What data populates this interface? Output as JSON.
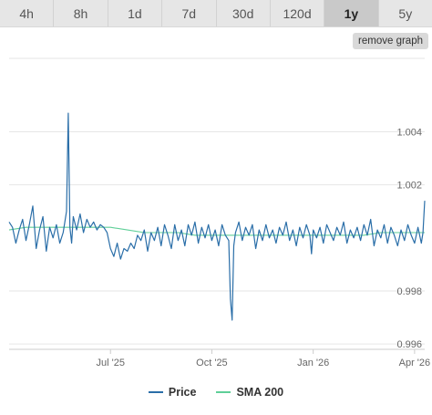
{
  "tabs": [
    {
      "label": "4h",
      "active": false
    },
    {
      "label": "8h",
      "active": false
    },
    {
      "label": "1d",
      "active": false
    },
    {
      "label": "7d",
      "active": false
    },
    {
      "label": "30d",
      "active": false
    },
    {
      "label": "120d",
      "active": false
    },
    {
      "label": "1y",
      "active": true
    },
    {
      "label": "5y",
      "active": false
    }
  ],
  "remove_graph_label": "remove graph",
  "colors": {
    "price": "#2a6ea8",
    "sma": "#5fcf98",
    "grid": "#e6e6e6",
    "tick_text": "#666666"
  },
  "chart_data": {
    "type": "line",
    "title": "",
    "xlabel": "",
    "ylabel": "",
    "ylim": [
      0.9958,
      1.0068
    ],
    "xlim": [
      0,
      12.3
    ],
    "grid": true,
    "legend_position": "bottom-center",
    "y_ticks": [
      {
        "value": 0.996,
        "label": "0.996"
      },
      {
        "value": 0.998,
        "label": "0.998"
      },
      {
        "value": 1.002,
        "label": "1.002"
      },
      {
        "value": 1.004,
        "label": "1.004"
      }
    ],
    "x_ticks": [
      {
        "value": 3.0,
        "label": "Jul '25"
      },
      {
        "value": 6.0,
        "label": "Oct '25"
      },
      {
        "value": 9.0,
        "label": "Jan '26"
      },
      {
        "value": 12.0,
        "label": "Apr '26"
      }
    ],
    "series": [
      {
        "name": "Price",
        "color": "#2a6ea8",
        "x": [
          0.0,
          0.1,
          0.2,
          0.3,
          0.4,
          0.5,
          0.6,
          0.7,
          0.8,
          0.9,
          1.0,
          1.1,
          1.2,
          1.3,
          1.4,
          1.5,
          1.6,
          1.7,
          1.75,
          1.8,
          1.85,
          1.9,
          2.0,
          2.1,
          2.2,
          2.3,
          2.4,
          2.5,
          2.6,
          2.7,
          2.8,
          2.9,
          3.0,
          3.1,
          3.2,
          3.3,
          3.4,
          3.5,
          3.6,
          3.7,
          3.8,
          3.9,
          4.0,
          4.1,
          4.2,
          4.3,
          4.4,
          4.5,
          4.6,
          4.7,
          4.8,
          4.9,
          5.0,
          5.1,
          5.2,
          5.3,
          5.4,
          5.5,
          5.6,
          5.7,
          5.8,
          5.9,
          6.0,
          6.1,
          6.2,
          6.3,
          6.4,
          6.5,
          6.55,
          6.6,
          6.65,
          6.7,
          6.8,
          6.9,
          7.0,
          7.1,
          7.2,
          7.3,
          7.4,
          7.5,
          7.6,
          7.7,
          7.8,
          7.9,
          8.0,
          8.1,
          8.2,
          8.3,
          8.4,
          8.5,
          8.6,
          8.7,
          8.8,
          8.9,
          8.95,
          9.0,
          9.1,
          9.2,
          9.3,
          9.4,
          9.5,
          9.6,
          9.7,
          9.8,
          9.9,
          10.0,
          10.1,
          10.2,
          10.3,
          10.4,
          10.5,
          10.6,
          10.7,
          10.8,
          10.9,
          11.0,
          11.1,
          11.2,
          11.3,
          11.4,
          11.5,
          11.6,
          11.7,
          11.8,
          11.9,
          12.0,
          12.1,
          12.2,
          12.25,
          12.3
        ],
        "y": [
          1.0006,
          1.0004,
          0.9998,
          1.0003,
          1.0007,
          0.9999,
          1.0005,
          1.0012,
          0.9996,
          1.0003,
          1.0008,
          0.9995,
          1.0004,
          1.0,
          1.0005,
          0.9998,
          1.0002,
          1.001,
          1.0047,
          1.0004,
          0.9998,
          1.0008,
          1.0003,
          1.0009,
          1.0002,
          1.0007,
          1.0004,
          1.0006,
          1.0003,
          1.0005,
          1.0004,
          1.0002,
          0.9996,
          0.9993,
          0.9998,
          0.9992,
          0.9996,
          0.9995,
          0.9998,
          0.9996,
          1.0001,
          0.9999,
          1.0003,
          0.9995,
          1.0002,
          0.9999,
          1.0004,
          0.9997,
          1.0005,
          1.0001,
          0.9996,
          1.0005,
          0.9999,
          1.0003,
          0.9997,
          1.0005,
          1.0001,
          1.0006,
          0.9998,
          1.0004,
          1.0,
          1.0005,
          0.9999,
          1.0003,
          0.9997,
          1.0005,
          1.0001,
          0.9999,
          0.9977,
          0.9969,
          0.9997,
          1.0002,
          1.0006,
          0.9999,
          1.0004,
          1.0001,
          1.0005,
          0.9996,
          1.0003,
          0.9999,
          1.0005,
          1.0,
          1.0003,
          0.9998,
          1.0004,
          1.0001,
          1.0006,
          0.9999,
          1.0003,
          0.9997,
          1.0004,
          1.0,
          1.0005,
          1.0001,
          0.9994,
          1.0003,
          1.0,
          1.0004,
          0.9998,
          1.0005,
          1.0002,
          0.9999,
          1.0004,
          1.0001,
          1.0006,
          0.9998,
          1.0003,
          1.0,
          1.0004,
          0.9999,
          1.0005,
          1.0001,
          1.0007,
          0.9997,
          1.0003,
          1.0,
          1.0005,
          0.9998,
          1.0004,
          1.0001,
          0.9997,
          1.0003,
          0.9999,
          1.0005,
          1.0001,
          0.9998,
          1.0004,
          0.9998,
          1.0002,
          1.0014
        ]
      },
      {
        "name": "SMA 200",
        "color": "#5fcf98",
        "x": [
          0.0,
          0.5,
          1.0,
          1.5,
          2.0,
          2.5,
          3.0,
          3.5,
          4.0,
          4.5,
          5.0,
          5.5,
          6.0,
          6.5,
          7.0,
          7.5,
          8.0,
          8.5,
          9.0,
          9.5,
          10.0,
          10.5,
          11.0,
          11.5,
          12.0,
          12.3
        ],
        "y": [
          1.0003,
          1.0004,
          1.0004,
          1.0004,
          1.0004,
          1.0004,
          1.0004,
          1.0003,
          1.0002,
          1.0002,
          1.0002,
          1.0001,
          1.0001,
          1.0001,
          1.0001,
          1.0001,
          1.0001,
          1.0001,
          1.0001,
          1.0001,
          1.0001,
          1.0001,
          1.0002,
          1.0002,
          1.0002,
          1.0002
        ]
      }
    ]
  }
}
